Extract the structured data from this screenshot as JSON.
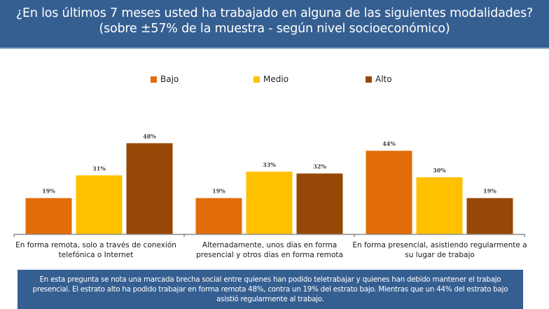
{
  "header": {
    "title": "¿En los últimos 7 meses usted ha trabajado en alguna de las siguientes modalidades? (sobre ±57% de la muestra - según nivel socioeconómico)"
  },
  "colors": {
    "header_bg": "#365f91",
    "bajo": "#e36c0a",
    "medio": "#ffc000",
    "alto": "#974806",
    "axis": "#8c8c8c"
  },
  "chart_data": {
    "type": "bar",
    "title": "¿En los últimos 7 meses usted ha trabajado en alguna de las siguientes modalidades? (sobre ±57% de la muestra - según nivel socioeconómico)",
    "xlabel": "",
    "ylabel": "",
    "ylim": [
      0,
      50
    ],
    "grid": false,
    "legend_position": "top",
    "value_suffix": "%",
    "categories": [
      "En forma remota, solo a través de conexión telefónica o Internet",
      "Alternadamente, unos días en forma presencial y otros días en forma remota",
      "En forma presencial, asistiendo regularmente a su lugar de trabajo"
    ],
    "series": [
      {
        "name": "Bajo",
        "color": "#e36c0a",
        "values": [
          19,
          19,
          44
        ]
      },
      {
        "name": "Medio",
        "color": "#ffc000",
        "values": [
          31,
          33,
          30
        ]
      },
      {
        "name": "Alto",
        "color": "#974806",
        "values": [
          48,
          32,
          19
        ]
      }
    ],
    "data_labels": [
      [
        "19%",
        "19%",
        "44%"
      ],
      [
        "31%",
        "33%",
        "30%"
      ],
      [
        "48%",
        "32%",
        "19%"
      ]
    ]
  },
  "footer": {
    "text": "En esta pregunta se nota una marcada brecha social entre quienes han podido teletrabajar y quienes han debido mantener el trabajo presencial. El estrato alto ha podido trabajar en forma remota 48%, contra un 19% del estrato bajo. Mientras que un 44% del estrato bajo asistió regularmente al trabajo."
  }
}
